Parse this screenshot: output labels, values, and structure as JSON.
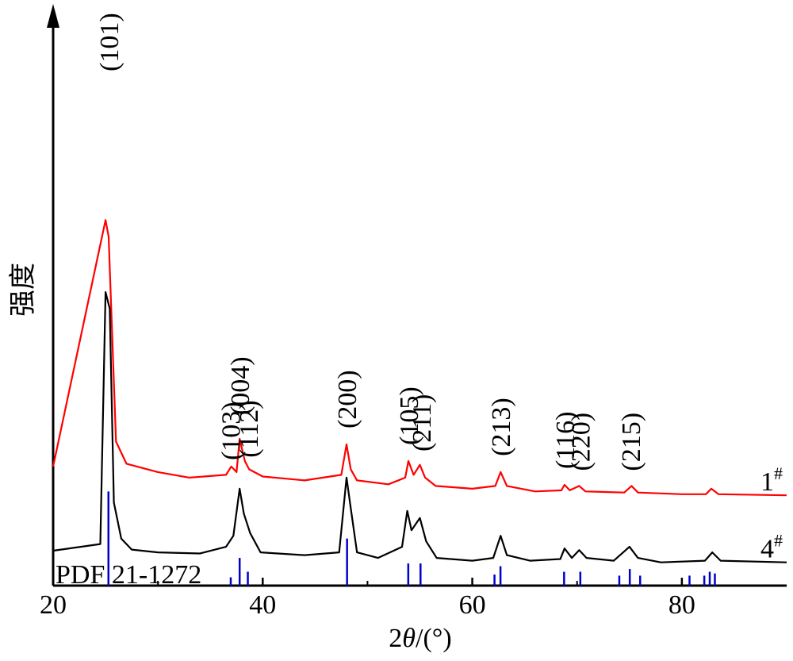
{
  "chart_data": {
    "type": "line",
    "xlabel_main": "2",
    "xlabel_theta": "θ",
    "xlabel_unit": "/(°)",
    "ylabel": "强度",
    "xlim": [
      20,
      90
    ],
    "x_ticks": [
      20,
      40,
      60,
      80
    ],
    "y_ticks_shown": false,
    "series": [
      {
        "name": "1",
        "name_sup": "#",
        "color": "#ff0000",
        "points": [
          [
            20,
            0.215
          ],
          [
            25.0,
            0.66
          ],
          [
            25.3,
            0.63
          ],
          [
            26,
            0.26
          ],
          [
            27,
            0.22
          ],
          [
            30,
            0.205
          ],
          [
            33,
            0.195
          ],
          [
            36.5,
            0.2
          ],
          [
            37.0,
            0.215
          ],
          [
            37.5,
            0.205
          ],
          [
            37.8,
            0.265
          ],
          [
            38.3,
            0.225
          ],
          [
            38.7,
            0.21
          ],
          [
            40,
            0.197
          ],
          [
            44,
            0.19
          ],
          [
            47.5,
            0.2
          ],
          [
            48.0,
            0.255
          ],
          [
            48.4,
            0.21
          ],
          [
            49,
            0.19
          ],
          [
            52,
            0.183
          ],
          [
            53.6,
            0.195
          ],
          [
            53.9,
            0.225
          ],
          [
            54.4,
            0.2
          ],
          [
            55,
            0.218
          ],
          [
            55.5,
            0.195
          ],
          [
            56.5,
            0.18
          ],
          [
            60,
            0.175
          ],
          [
            62.2,
            0.18
          ],
          [
            62.7,
            0.205
          ],
          [
            63.3,
            0.18
          ],
          [
            66,
            0.17
          ],
          [
            68.5,
            0.172
          ],
          [
            68.8,
            0.182
          ],
          [
            69.3,
            0.172
          ],
          [
            70.2,
            0.18
          ],
          [
            70.8,
            0.17
          ],
          [
            74.5,
            0.168
          ],
          [
            75.2,
            0.18
          ],
          [
            75.8,
            0.168
          ],
          [
            80,
            0.165
          ],
          [
            82.3,
            0.165
          ],
          [
            82.8,
            0.175
          ],
          [
            83.5,
            0.165
          ],
          [
            90,
            0.163
          ]
        ]
      },
      {
        "name": "4",
        "name_sup": "#",
        "color": "#000000",
        "points": [
          [
            20,
            0.063
          ],
          [
            24.5,
            0.075
          ],
          [
            25.0,
            0.53
          ],
          [
            25.4,
            0.5
          ],
          [
            25.8,
            0.15
          ],
          [
            26.5,
            0.085
          ],
          [
            27.5,
            0.065
          ],
          [
            30,
            0.06
          ],
          [
            34,
            0.058
          ],
          [
            36.5,
            0.07
          ],
          [
            37.2,
            0.09
          ],
          [
            37.8,
            0.175
          ],
          [
            38.2,
            0.13
          ],
          [
            38.8,
            0.095
          ],
          [
            39.8,
            0.06
          ],
          [
            44,
            0.055
          ],
          [
            47.3,
            0.06
          ],
          [
            48.0,
            0.195
          ],
          [
            48.4,
            0.14
          ],
          [
            49,
            0.06
          ],
          [
            51,
            0.05
          ],
          [
            53.3,
            0.07
          ],
          [
            53.8,
            0.135
          ],
          [
            54.2,
            0.1
          ],
          [
            55.0,
            0.122
          ],
          [
            55.6,
            0.08
          ],
          [
            56.6,
            0.05
          ],
          [
            60,
            0.045
          ],
          [
            62.0,
            0.05
          ],
          [
            62.7,
            0.09
          ],
          [
            63.3,
            0.055
          ],
          [
            65.5,
            0.045
          ],
          [
            68.4,
            0.048
          ],
          [
            68.8,
            0.067
          ],
          [
            69.5,
            0.05
          ],
          [
            70.2,
            0.064
          ],
          [
            70.9,
            0.05
          ],
          [
            73.5,
            0.045
          ],
          [
            75.0,
            0.07
          ],
          [
            75.8,
            0.05
          ],
          [
            78,
            0.042
          ],
          [
            82.2,
            0.045
          ],
          [
            82.9,
            0.06
          ],
          [
            83.7,
            0.045
          ],
          [
            90,
            0.042
          ]
        ]
      }
    ],
    "peak_labels": [
      {
        "text": "(101)",
        "x": 25.3
      },
      {
        "text": "(103)",
        "x": 36.9
      },
      {
        "text": "(004)",
        "x": 37.8
      },
      {
        "text": "(112)",
        "x": 38.6
      },
      {
        "text": "(200)",
        "x": 48.0
      },
      {
        "text": "(105)",
        "x": 53.9
      },
      {
        "text": "(211)",
        "x": 55.1
      },
      {
        "text": "(213)",
        "x": 62.7
      },
      {
        "text": "(116)",
        "x": 68.8
      },
      {
        "text": "(220)",
        "x": 70.3
      },
      {
        "text": "(215)",
        "x": 75.1
      }
    ],
    "reference": {
      "label": "PDF 21-1272",
      "color": "#0000cc",
      "lines": [
        [
          25.28,
          0.17
        ],
        [
          36.95,
          0.015
        ],
        [
          37.8,
          0.05
        ],
        [
          38.58,
          0.025
        ],
        [
          48.05,
          0.085
        ],
        [
          53.89,
          0.04
        ],
        [
          55.06,
          0.04
        ],
        [
          62.12,
          0.02
        ],
        [
          62.69,
          0.035
        ],
        [
          68.76,
          0.025
        ],
        [
          70.31,
          0.025
        ],
        [
          74.03,
          0.018
        ],
        [
          75.03,
          0.03
        ],
        [
          76.02,
          0.018
        ],
        [
          80.73,
          0.018
        ],
        [
          82.14,
          0.018
        ],
        [
          82.66,
          0.025
        ],
        [
          83.15,
          0.022
        ]
      ]
    }
  }
}
